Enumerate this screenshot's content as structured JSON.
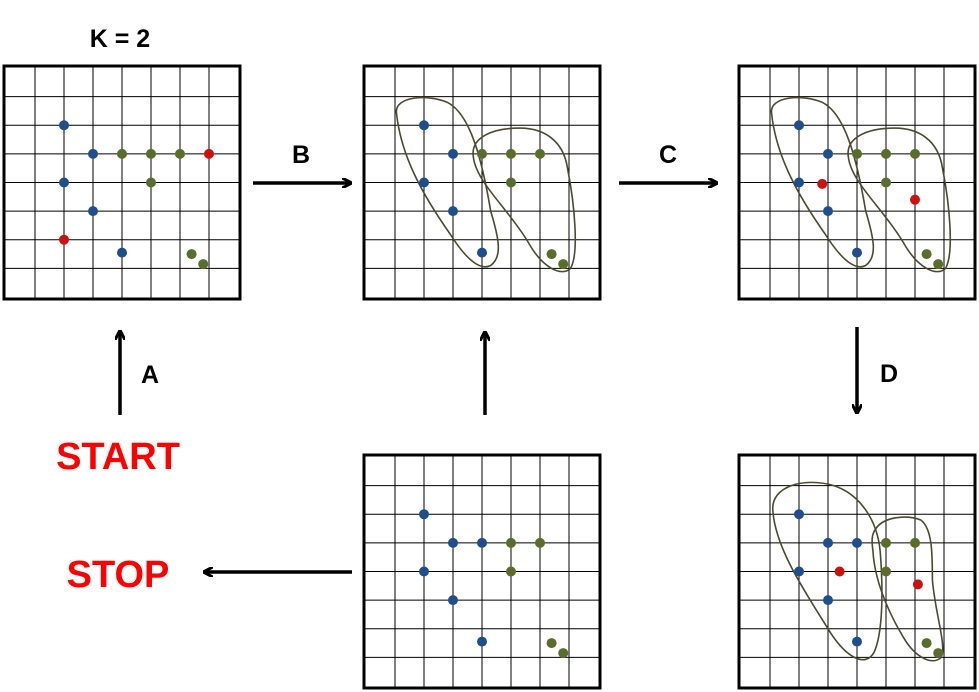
{
  "title": "K = 2",
  "start_label": "START",
  "stop_label": "STOP",
  "step_labels": {
    "a": "A",
    "b": "B",
    "c": "C",
    "d": "D"
  },
  "colors": {
    "blue": "#1f4e8c",
    "green": "#5a6e2c",
    "red": "#cc1111",
    "cluster_outline": "#4a4a30",
    "grid_line": "#000000",
    "start_stop_text": "#ff0000"
  },
  "grid": {
    "columns": 8,
    "rows": 8
  },
  "panels": [
    {
      "id": "panel-1",
      "points": [
        {
          "c": "blue",
          "x": 2,
          "y": 2
        },
        {
          "c": "blue",
          "x": 3,
          "y": 3
        },
        {
          "c": "green",
          "x": 4,
          "y": 3
        },
        {
          "c": "green",
          "x": 5,
          "y": 3
        },
        {
          "c": "green",
          "x": 6,
          "y": 3
        },
        {
          "c": "red",
          "x": 7,
          "y": 3
        },
        {
          "c": "blue",
          "x": 2,
          "y": 4
        },
        {
          "c": "green",
          "x": 5,
          "y": 4
        },
        {
          "c": "blue",
          "x": 3,
          "y": 5
        },
        {
          "c": "red",
          "x": 2,
          "y": 6
        },
        {
          "c": "blue",
          "x": 4,
          "y": 6.45
        },
        {
          "c": "green",
          "x": 6.4,
          "y": 6.5
        },
        {
          "c": "green",
          "x": 6.8,
          "y": 6.85
        }
      ],
      "clusters": []
    },
    {
      "id": "panel-2",
      "points": [
        {
          "c": "blue",
          "x": 2,
          "y": 2
        },
        {
          "c": "blue",
          "x": 3,
          "y": 3
        },
        {
          "c": "green",
          "x": 4,
          "y": 3
        },
        {
          "c": "green",
          "x": 5,
          "y": 3
        },
        {
          "c": "green",
          "x": 6,
          "y": 3
        },
        {
          "c": "blue",
          "x": 2,
          "y": 4
        },
        {
          "c": "green",
          "x": 5,
          "y": 4
        },
        {
          "c": "blue",
          "x": 3,
          "y": 5
        },
        {
          "c": "blue",
          "x": 4,
          "y": 6.45
        },
        {
          "c": "green",
          "x": 6.4,
          "y": 6.5
        },
        {
          "c": "green",
          "x": 6.8,
          "y": 6.85
        }
      ],
      "clusters": [
        "blue-left",
        "green-right"
      ]
    },
    {
      "id": "panel-3",
      "points": [
        {
          "c": "blue",
          "x": 2,
          "y": 2
        },
        {
          "c": "blue",
          "x": 3,
          "y": 3
        },
        {
          "c": "green",
          "x": 4,
          "y": 3
        },
        {
          "c": "green",
          "x": 5,
          "y": 3
        },
        {
          "c": "green",
          "x": 6,
          "y": 3
        },
        {
          "c": "blue",
          "x": 2,
          "y": 4
        },
        {
          "c": "red",
          "x": 2.8,
          "y": 4.05
        },
        {
          "c": "green",
          "x": 5,
          "y": 4
        },
        {
          "c": "red",
          "x": 6,
          "y": 4.6
        },
        {
          "c": "blue",
          "x": 3,
          "y": 5
        },
        {
          "c": "blue",
          "x": 4,
          "y": 6.45
        },
        {
          "c": "green",
          "x": 6.4,
          "y": 6.5
        },
        {
          "c": "green",
          "x": 6.8,
          "y": 6.85
        }
      ],
      "clusters": [
        "blue-left",
        "green-right"
      ]
    },
    {
      "id": "panel-4",
      "points": [
        {
          "c": "blue",
          "x": 2,
          "y": 2
        },
        {
          "c": "blue",
          "x": 3,
          "y": 3
        },
        {
          "c": "blue",
          "x": 4,
          "y": 3
        },
        {
          "c": "green",
          "x": 5,
          "y": 3
        },
        {
          "c": "green",
          "x": 6,
          "y": 3
        },
        {
          "c": "blue",
          "x": 2,
          "y": 4
        },
        {
          "c": "green",
          "x": 5,
          "y": 4
        },
        {
          "c": "blue",
          "x": 3,
          "y": 5
        },
        {
          "c": "blue",
          "x": 4,
          "y": 6.45
        },
        {
          "c": "green",
          "x": 6.4,
          "y": 6.5
        },
        {
          "c": "green",
          "x": 6.8,
          "y": 6.85
        }
      ],
      "clusters": []
    },
    {
      "id": "panel-5",
      "points": [
        {
          "c": "blue",
          "x": 2,
          "y": 2
        },
        {
          "c": "blue",
          "x": 3,
          "y": 3
        },
        {
          "c": "blue",
          "x": 4,
          "y": 3
        },
        {
          "c": "green",
          "x": 5,
          "y": 3
        },
        {
          "c": "green",
          "x": 6,
          "y": 3
        },
        {
          "c": "blue",
          "x": 2,
          "y": 4
        },
        {
          "c": "red",
          "x": 3.4,
          "y": 4
        },
        {
          "c": "green",
          "x": 5,
          "y": 4
        },
        {
          "c": "red",
          "x": 6.1,
          "y": 4.45
        },
        {
          "c": "blue",
          "x": 3,
          "y": 5
        },
        {
          "c": "blue",
          "x": 4,
          "y": 6.45
        },
        {
          "c": "green",
          "x": 6.4,
          "y": 6.5
        },
        {
          "c": "green",
          "x": 6.8,
          "y": 6.85
        }
      ],
      "clusters": [
        "blue-wide",
        "green-narrow"
      ]
    }
  ]
}
